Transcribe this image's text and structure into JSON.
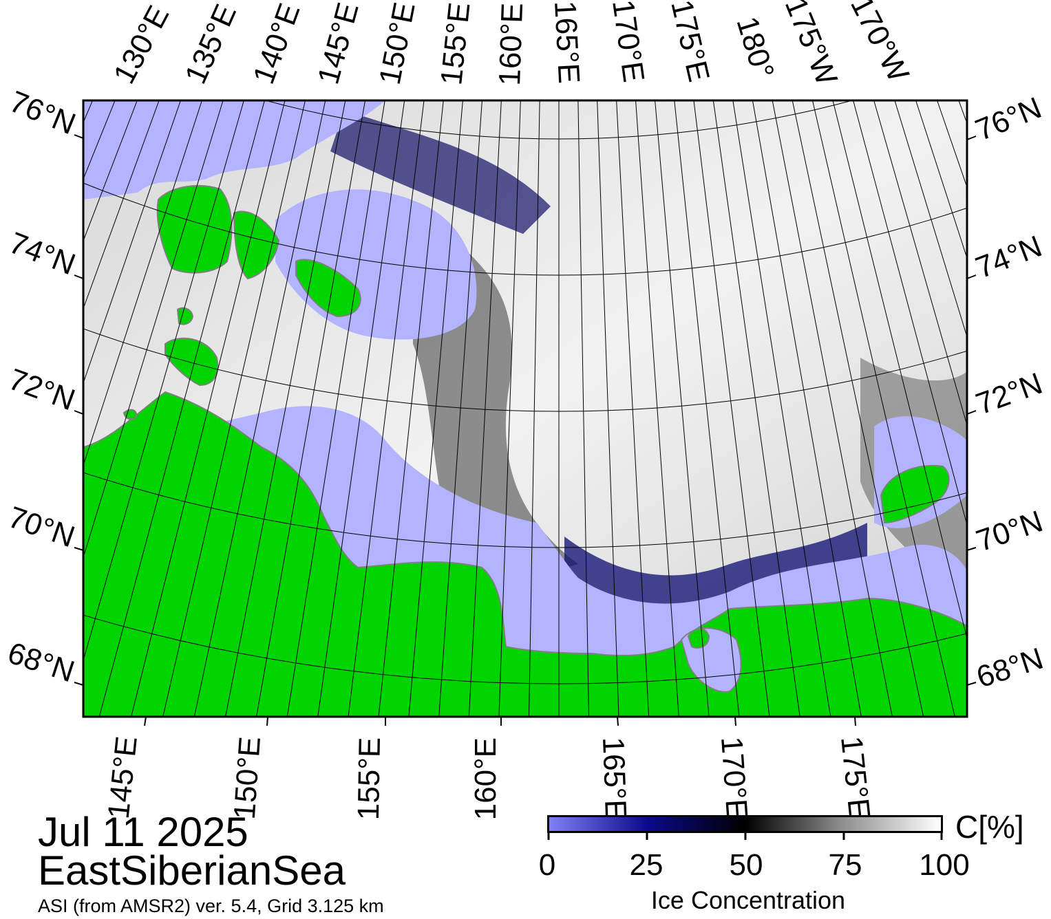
{
  "map": {
    "date": "Jul 11 2025",
    "region": "EastSiberianSea",
    "source": "ASI (from AMSR2) ver. 5.4,  Grid 3.125 km",
    "colors": {
      "open_water": "#b3b3ff",
      "land": "#00d400",
      "coast": "#808080"
    },
    "top_lon_labels": [
      "130°E",
      "135°E",
      "140°E",
      "145°E",
      "150°E",
      "155°E",
      "160°E",
      "165°E",
      "170°E",
      "175°E",
      "180°",
      "175°W",
      "170°W"
    ],
    "bottom_lon_labels": [
      "145°E",
      "150°E",
      "155°E",
      "160°E",
      "165°E",
      "170°E",
      "175°E"
    ],
    "lat_labels": [
      "76°N",
      "74°N",
      "72°N",
      "70°N",
      "68°N"
    ]
  },
  "colorbar": {
    "title": "Ice Concentration",
    "unit": "C[%]",
    "ticks": [
      "0",
      "25",
      "50",
      "75",
      "100"
    ],
    "range": [
      0,
      100
    ]
  }
}
